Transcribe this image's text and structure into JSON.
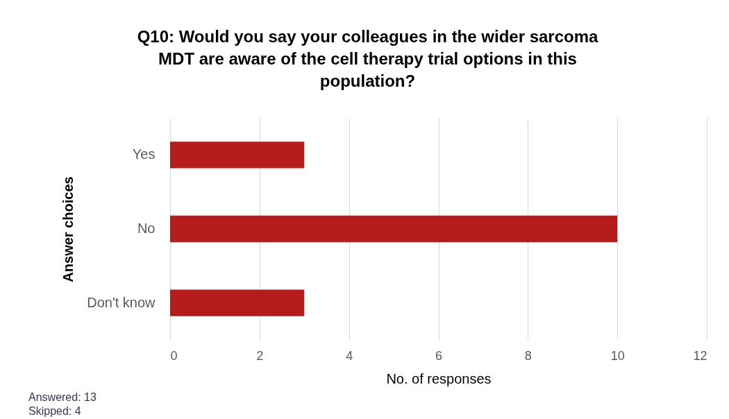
{
  "chart_data": {
    "type": "bar",
    "orientation": "horizontal",
    "title": "Q10: Would you say your colleagues in the wider sarcoma MDT are aware of the cell therapy trial options in this population?",
    "xlabel": "No. of responses",
    "ylabel": "Answer choices",
    "categories": [
      "Yes",
      "No",
      "Don't know"
    ],
    "values": [
      3,
      10,
      3
    ],
    "color": "#b71c1c",
    "xlim": [
      0,
      12
    ],
    "xticks": [
      0,
      2,
      4,
      6,
      8,
      10,
      12
    ],
    "grid": "x",
    "annotations": [
      "Answered: 13",
      "Skipped: 4"
    ]
  }
}
